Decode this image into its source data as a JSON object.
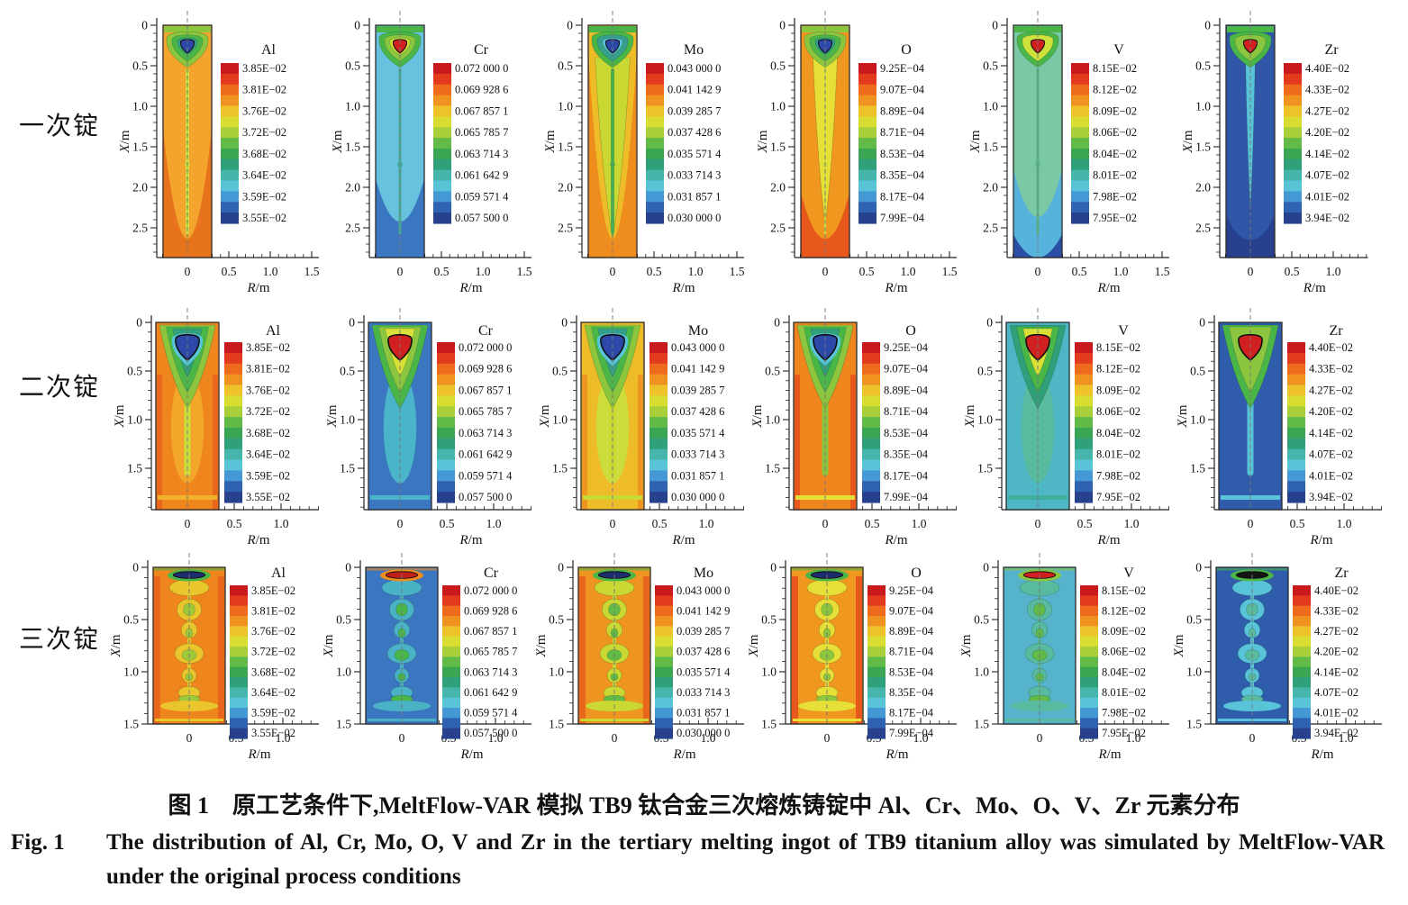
{
  "page": {
    "background": "#ffffff",
    "text_color": "#111111"
  },
  "chart_data": {
    "type": "heatmap",
    "subtype": "filled-contour-grid",
    "description": "3 rows (melting stages) x 6 columns (elements): simulated element concentration contour maps in VAR ingot axial cross-sections, each panel with its own discrete rainbow colorbar legend",
    "title": "原工艺条件下,MeltFlow-VAR 模拟 TB9 钛合金三次熔炼铸锭中 Al、Cr、Mo、O、V、Zr 元素分布",
    "title_en": "The distribution of Al, Cr, Mo, O, V and Zr in the tertiary melting ingot of TB9 titanium alloy was simulated by MeltFlow-VAR under the original process conditions",
    "xlabel_sym": "R",
    "ylabel_sym": "X",
    "unit": "m",
    "legend_position": "right-of-each-plot",
    "grid": false,
    "grid_rows": [
      {
        "label": "一次锭",
        "y_ticks": [
          "0",
          "0.5",
          "1.0",
          "1.5",
          "2.0",
          "2.5"
        ],
        "x_ticks": [
          "0",
          "0.5",
          "1.0",
          "1.5"
        ],
        "ingot_depth_m": 2.87,
        "ingot_radius_m": 0.3
      },
      {
        "label": "二次锭",
        "y_ticks": [
          "0",
          "0.5",
          "1.0",
          "1.5"
        ],
        "x_ticks": [
          "0",
          "0.5",
          "1.0"
        ],
        "ingot_depth_m": 1.93,
        "ingot_radius_m": 0.34
      },
      {
        "label": "三次锭",
        "y_ticks": [
          "0",
          "0.5",
          "1.0",
          "1.5"
        ],
        "x_ticks": [
          "0",
          "0.5",
          "1.0"
        ],
        "ingot_depth_m": 1.5,
        "ingot_radius_m": 0.38
      }
    ],
    "columns": [
      {
        "symbol": "Al",
        "levels": [
          "3.85E−02",
          "3.81E−02",
          "3.76E−02",
          "3.72E−02",
          "3.68E−02",
          "3.64E−02",
          "3.59E−02",
          "3.55E−02"
        ]
      },
      {
        "symbol": "Cr",
        "levels": [
          "0.072 000 0",
          "0.069 928 6",
          "0.067 857 1",
          "0.065 785 7",
          "0.063 714 3",
          "0.061 642 9",
          "0.059 571 4",
          "0.057 500 0"
        ]
      },
      {
        "symbol": "Mo",
        "levels": [
          "0.043 000 0",
          "0.041 142 9",
          "0.039 285 7",
          "0.037 428 6",
          "0.035 571 4",
          "0.033 714 3",
          "0.031 857 1",
          "0.030 000 0"
        ]
      },
      {
        "symbol": "O",
        "levels": [
          "9.25E−04",
          "9.07E−04",
          "8.89E−04",
          "8.71E−04",
          "8.53E−04",
          "8.35E−04",
          "8.17E−04",
          "7.99E−04"
        ]
      },
      {
        "symbol": "V",
        "levels": [
          "8.15E−02",
          "8.12E−02",
          "8.09E−02",
          "8.06E−02",
          "8.04E−02",
          "8.01E−02",
          "7.98E−02",
          "7.95E−02"
        ]
      },
      {
        "symbol": "Zr",
        "levels": [
          "4.40E−02",
          "4.33E−02",
          "4.27E−02",
          "4.20E−02",
          "4.14E−02",
          "4.07E−02",
          "4.01E−02",
          "3.94E−02"
        ]
      }
    ],
    "colorbar_palette": [
      "#c8191c",
      "#e23a1c",
      "#ee6b1d",
      "#f0921f",
      "#eec22a",
      "#d9dc31",
      "#a8cf3a",
      "#63bb47",
      "#3aa653",
      "#2fa07a",
      "#46b5ab",
      "#59c3d8",
      "#4499d4",
      "#2f62b0",
      "#27418f"
    ]
  },
  "figure": {
    "plots": [
      [
        {
          "body": "#f2a42c",
          "edge": "#e8731d",
          "edgeStart": 0.45,
          "streak": "#ccdc3a",
          "streakW": 4,
          "rings": [
            "#8cc63f",
            "#4bb648",
            "#35a08c"
          ],
          "core": "#2c48a8"
        },
        {
          "body": "#68c2dd",
          "edge": "#3b77c0",
          "edgePos": "bottom",
          "edgeStart": 0.66,
          "streak": "#3fae9c",
          "streakW": 3,
          "rings": [
            "#4bb648",
            "#8cc63f",
            "#d9e137"
          ],
          "core": "#d0201f"
        },
        {
          "body": "#eebc28",
          "edge": "#ee8c1e",
          "edgeStart": 0.12,
          "tongue": {
            "color": "#c9d833",
            "w": 0.72,
            "tip": 0.92
          },
          "streak": "#4bb648",
          "streakW": 4,
          "rings": [
            "#4bb648",
            "#35a08c",
            "#59c3d8"
          ],
          "core": "#2c48a8"
        },
        {
          "body": "#f0971f",
          "edge": "#e8581c",
          "edgeStart": 0.72,
          "tongue": {
            "color": "#e6df37",
            "w": 0.5,
            "tip": 0.86
          },
          "streak": "#cfe13a",
          "streakW": 2,
          "rings": [
            "#8cc63f",
            "#4bb648",
            "#35a08c"
          ],
          "core": "#2c48a8"
        },
        {
          "body": "#7ac9a4",
          "edge": "#56b3dc",
          "edgePos": "bottom",
          "edgeStart": 0.62,
          "corner": "#2b4fa5",
          "streak": "#54b98c",
          "streakW": 3,
          "rings": [
            "#4bb648",
            "#cfe13a"
          ],
          "core": "#d0201f"
        },
        {
          "body": "#3056a8",
          "edge": "#27418f",
          "edgePos": "bottom",
          "edgeStart": 0.82,
          "tongue": {
            "color": "#59c3d8",
            "w": 0.2,
            "tip": 0.8
          },
          "rings": [
            "#4bb648",
            "#8cc63f"
          ],
          "core": "#d0201f",
          "x_ticks": [
            "0",
            "0.5",
            "1.0"
          ]
        }
      ],
      [
        {
          "body": "#ee851d",
          "side": "#e8671c",
          "column": "#f2a72b",
          "rings": [
            "#8cc63f",
            "#4bb648",
            "#2fa07a"
          ],
          "coreRing": "#59c3d8",
          "core": "#2c48a8",
          "tail": "#ccdc3a",
          "bottomBand": "#f0b22a"
        },
        {
          "body": "#3b77c0",
          "column": "#4ab5c8",
          "rings": [
            "#4bb648",
            "#8cc63f",
            "#d9e137"
          ],
          "core": "#d0201f",
          "tail": "#4ab5c8",
          "bottomBand": "#4ab5c8"
        },
        {
          "body": "#eebc28",
          "side": "#ee9420",
          "column": "#ccdc3a",
          "rings": [
            "#8cc63f",
            "#4bb648",
            "#35a08c"
          ],
          "coreRing": "#59c3d8",
          "core": "#2c48a8",
          "tail": "#c9d833",
          "bottomBand": "#c9d833"
        },
        {
          "body": "#ee851d",
          "side": "#e8581c",
          "rings": [
            "#8cc63f",
            "#4bb648",
            "#2fa07a"
          ],
          "coreRing": "#59c3d8",
          "core": "#2c48a8",
          "tail": "#8cc63f",
          "bottomBand": "#e6df37"
        },
        {
          "body": "#4fb6c6",
          "column": "#58ba9e",
          "rings": [
            "#2fa07a",
            "#4bb648",
            "#d9e137"
          ],
          "core": "#d0201f",
          "tail": "#58ba9e",
          "bottomBand": "#3fae9c"
        },
        {
          "body": "#2f5cab",
          "rings": [
            "#4bb648",
            "#8cc63f"
          ],
          "core": "#d0201f",
          "tail": "#59c3d8",
          "bottomBand": "#59c3d8"
        }
      ],
      [
        {
          "body": "#ee851d",
          "side": "#e8671c",
          "mottle": "#e9c72c",
          "mottle2": "#9cca3b",
          "lensRing": "#4bb648",
          "lens": "#1e2d6e",
          "bottomBlob": "#e9c72c"
        },
        {
          "body": "#3b77c0",
          "mottle": "#49b2c4",
          "mottle2": "#4bb648",
          "lensRing": "#ef8c1e",
          "lens": "#c21e1a",
          "bottomBlob": "#49b2c4"
        },
        {
          "body": "#ee9420",
          "side": "#e8671c",
          "mottle": "#c9d833",
          "mottle2": "#63bb47",
          "lensRing": "#4bb648",
          "lens": "#1e2d6e",
          "bottomBlob": "#c9d833"
        },
        {
          "body": "#f0971f",
          "side": "#e8581c",
          "mottle": "#e6df37",
          "mottle2": "#8cc63f",
          "lensRing": "#4bb648",
          "lens": "#1e2d6e",
          "bottomBlob": "#e6df37"
        },
        {
          "body": "#55b3cc",
          "mottle": "#58ba9e",
          "mottle2": "#63bb47",
          "lensRing": "#8cc63f",
          "lens": "#d0201f",
          "bottomBlob": "#58ba9e"
        },
        {
          "body": "#2f5cab",
          "mottle": "#59c3d8",
          "mottle2": "#58ba9e",
          "lensRing": "#4bb648",
          "lens": "#151515",
          "bottomBlob": "#59c3d8"
        }
      ]
    ]
  },
  "caption": {
    "zh": "图 1　原工艺条件下,MeltFlow-VAR 模拟 TB9 钛合金三次熔炼铸锭中 Al、Cr、Mo、O、V、Zr 元素分布",
    "en_label": "Fig. 1",
    "en_text": "The distribution of Al, Cr, Mo, O, V and Zr in the tertiary melting ingot of TB9 titanium alloy was simulated by MeltFlow-VAR under the original process conditions"
  }
}
